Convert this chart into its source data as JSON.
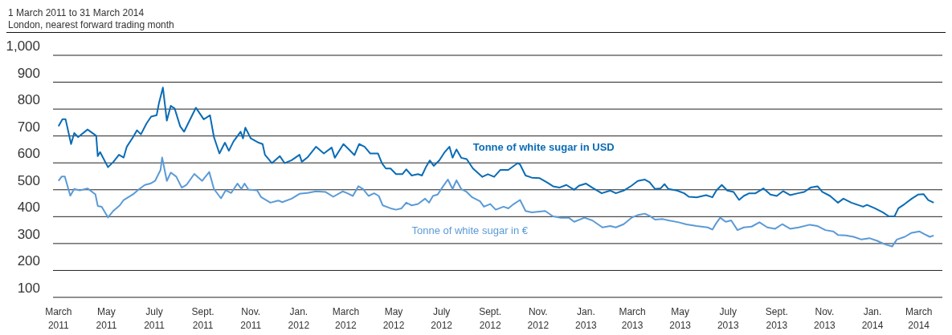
{
  "chart_data": {
    "type": "line",
    "title": "1 March 2011 to 31 March 2014",
    "subtitle": "London, nearest forward trading month",
    "xlim": [
      "2011-02-22",
      "2014-03-31"
    ],
    "xticks": [
      {
        "value": "2011-03-01",
        "label": "March 2011"
      },
      {
        "value": "2011-05-01",
        "label": "May 2011"
      },
      {
        "value": "2011-07-01",
        "label": "July 2011"
      },
      {
        "value": "2011-09-01",
        "label": "Sept. 2011"
      },
      {
        "value": "2011-11-01",
        "label": "Nov. 2011"
      },
      {
        "value": "2012-01-01",
        "label": "Jan. 2012"
      },
      {
        "value": "2012-03-01",
        "label": "March 2012"
      },
      {
        "value": "2012-05-01",
        "label": "May 2012"
      },
      {
        "value": "2012-07-01",
        "label": "July 2012"
      },
      {
        "value": "2012-09-01",
        "label": "Sept. 2012"
      },
      {
        "value": "2012-11-01",
        "label": "Nov. 2012"
      },
      {
        "value": "2013-01-01",
        "label": "Jan. 2013"
      },
      {
        "value": "2013-03-01",
        "label": "March 2013"
      },
      {
        "value": "2013-05-01",
        "label": "May 2013"
      },
      {
        "value": "2013-07-01",
        "label": "July 2013"
      },
      {
        "value": "2013-09-01",
        "label": "Sept. 2013"
      },
      {
        "value": "2013-11-01",
        "label": "Nov. 2013"
      },
      {
        "value": "2014-01-01",
        "label": "Jan. 2014"
      },
      {
        "value": "2014-03-01",
        "label": "March 2014"
      }
    ],
    "ylim": [
      100,
      1000
    ],
    "yticks": [
      100,
      200,
      300,
      400,
      500,
      600,
      700,
      800,
      900,
      {
        "value": 1000,
        "label": "1,000"
      }
    ],
    "grid": "y",
    "marker": "none",
    "line_style": "solid",
    "series": [
      {
        "name": "Tonne of white sugar in USD",
        "color": "#0a6cb5",
        "x": [
          "2011-03-01",
          "2011-03-06",
          "2011-03-10",
          "2011-03-17",
          "2011-03-21",
          "2011-03-26",
          "2011-04-07",
          "2011-04-18",
          "2011-04-20",
          "2011-04-23",
          "2011-05-03",
          "2011-05-10",
          "2011-05-17",
          "2011-05-23",
          "2011-05-27",
          "2011-06-04",
          "2011-06-09",
          "2011-06-14",
          "2011-06-21",
          "2011-06-27",
          "2011-07-04",
          "2011-07-07",
          "2011-07-12",
          "2011-07-17",
          "2011-07-22",
          "2011-07-27",
          "2011-08-03",
          "2011-08-08",
          "2011-08-13",
          "2011-08-23",
          "2011-09-02",
          "2011-09-10",
          "2011-09-15",
          "2011-09-22",
          "2011-09-29",
          "2011-10-04",
          "2011-10-10",
          "2011-10-19",
          "2011-10-22",
          "2011-10-25",
          "2011-11-01",
          "2011-11-11",
          "2011-11-16",
          "2011-11-19",
          "2011-11-28",
          "2011-12-08",
          "2011-12-14",
          "2011-12-23",
          "2012-01-02",
          "2012-01-05",
          "2012-01-12",
          "2012-01-23",
          "2012-02-02",
          "2012-02-12",
          "2012-02-16",
          "2012-02-27",
          "2012-03-05",
          "2012-03-12",
          "2012-03-18",
          "2012-03-25",
          "2012-04-01",
          "2012-04-11",
          "2012-04-16",
          "2012-04-21",
          "2012-04-27",
          "2012-05-04",
          "2012-05-12",
          "2012-05-17",
          "2012-05-24",
          "2012-06-01",
          "2012-06-06",
          "2012-06-11",
          "2012-06-16",
          "2012-06-21",
          "2012-06-28",
          "2012-07-05",
          "2012-07-11",
          "2012-07-15",
          "2012-07-20",
          "2012-07-26",
          "2012-08-02",
          "2012-08-10",
          "2012-08-22",
          "2012-08-29",
          "2012-09-06",
          "2012-09-14",
          "2012-09-24",
          "2012-10-06",
          "2012-10-09",
          "2012-10-16",
          "2012-10-24",
          "2012-11-03",
          "2012-11-12",
          "2012-11-20",
          "2012-11-28",
          "2012-12-07",
          "2012-12-17",
          "2012-12-23",
          "2013-01-01",
          "2013-01-09",
          "2013-01-21",
          "2013-02-01",
          "2013-02-08",
          "2013-02-18",
          "2013-02-28",
          "2013-03-08",
          "2013-03-17",
          "2013-03-23",
          "2013-03-30",
          "2013-04-06",
          "2013-04-11",
          "2013-04-16",
          "2013-04-27",
          "2013-05-06",
          "2013-05-12",
          "2013-05-22",
          "2013-06-03",
          "2013-06-11",
          "2013-06-16",
          "2013-06-23",
          "2013-06-30",
          "2013-07-08",
          "2013-07-15",
          "2013-07-21",
          "2013-07-28",
          "2013-08-05",
          "2013-08-15",
          "2013-08-24",
          "2013-09-01",
          "2013-09-09",
          "2013-09-18",
          "2013-09-28",
          "2013-10-06",
          "2013-10-14",
          "2013-10-23",
          "2013-10-29",
          "2013-11-08",
          "2013-11-18",
          "2013-11-25",
          "2013-12-05",
          "2013-12-20",
          "2013-12-25",
          "2014-01-04",
          "2014-01-14",
          "2014-01-22",
          "2014-01-29",
          "2014-02-03",
          "2014-02-11",
          "2014-02-20",
          "2014-02-28",
          "2014-03-07",
          "2014-03-13",
          "2014-03-20"
        ],
        "values": [
          736,
          762,
          762,
          670,
          711,
          696,
          724,
          701,
          625,
          640,
          584,
          604,
          630,
          620,
          660,
          696,
          721,
          706,
          746,
          772,
          777,
          823,
          880,
          757,
          812,
          802,
          736,
          716,
          746,
          805,
          762,
          777,
          696,
          635,
          675,
          645,
          680,
          716,
          691,
          731,
          691,
          675,
          670,
          630,
          599,
          625,
          599,
          610,
          630,
          604,
          620,
          660,
          635,
          657,
          619,
          670,
          650,
          629,
          670,
          660,
          635,
          635,
          599,
          579,
          579,
          558,
          558,
          576,
          553,
          558,
          553,
          584,
          609,
          589,
          609,
          640,
          660,
          619,
          650,
          619,
          614,
          579,
          548,
          558,
          548,
          574,
          574,
          599,
          594,
          553,
          545,
          543,
          528,
          513,
          508,
          518,
          500,
          515,
          523,
          508,
          487,
          497,
          487,
          497,
          515,
          533,
          538,
          528,
          503,
          505,
          521,
          503,
          497,
          487,
          474,
          472,
          480,
          472,
          497,
          518,
          497,
          492,
          462,
          477,
          487,
          487,
          505,
          482,
          477,
          495,
          480,
          487,
          492,
          508,
          513,
          492,
          477,
          452,
          467,
          452,
          437,
          444,
          431,
          416,
          401,
          401,
          431,
          447,
          467,
          482,
          484,
          462,
          452
        ]
      },
      {
        "name": "Tonne of white sugar in €",
        "color": "#5b9ad6",
        "x": [
          "2011-03-01",
          "2011-03-05",
          "2011-03-09",
          "2011-03-16",
          "2011-03-21",
          "2011-03-28",
          "2011-04-07",
          "2011-04-17",
          "2011-04-20",
          "2011-04-25",
          "2011-05-03",
          "2011-05-10",
          "2011-05-18",
          "2011-05-23",
          "2011-06-04",
          "2011-06-11",
          "2011-06-19",
          "2011-06-26",
          "2011-07-02",
          "2011-07-09",
          "2011-07-11",
          "2011-07-17",
          "2011-07-22",
          "2011-07-29",
          "2011-08-05",
          "2011-08-11",
          "2011-08-21",
          "2011-08-31",
          "2011-09-09",
          "2011-09-15",
          "2011-09-24",
          "2011-09-30",
          "2011-10-07",
          "2011-10-15",
          "2011-10-20",
          "2011-10-24",
          "2011-10-29",
          "2011-11-09",
          "2011-11-14",
          "2011-11-26",
          "2011-12-06",
          "2011-12-11",
          "2011-12-23",
          "2012-01-02",
          "2012-01-12",
          "2012-01-23",
          "2012-02-04",
          "2012-02-14",
          "2012-02-26",
          "2012-03-03",
          "2012-03-10",
          "2012-03-17",
          "2012-03-23",
          "2012-03-30",
          "2012-04-06",
          "2012-04-12",
          "2012-04-17",
          "2012-04-27",
          "2012-05-04",
          "2012-05-11",
          "2012-05-17",
          "2012-05-24",
          "2012-06-01",
          "2012-06-10",
          "2012-06-15",
          "2012-06-20",
          "2012-06-26",
          "2012-07-03",
          "2012-07-09",
          "2012-07-15",
          "2012-07-20",
          "2012-07-26",
          "2012-08-02",
          "2012-08-09",
          "2012-08-19",
          "2012-08-24",
          "2012-09-01",
          "2012-09-08",
          "2012-09-18",
          "2012-09-24",
          "2012-10-01",
          "2012-10-09",
          "2012-10-16",
          "2012-10-24",
          "2012-11-10",
          "2012-11-20",
          "2012-11-30",
          "2012-12-10",
          "2012-12-17",
          "2012-12-30",
          "2013-01-09",
          "2013-01-22",
          "2013-02-01",
          "2013-02-08",
          "2013-02-18",
          "2013-02-28",
          "2013-03-08",
          "2013-03-17",
          "2013-03-23",
          "2013-03-30",
          "2013-04-09",
          "2013-04-16",
          "2013-04-29",
          "2013-05-09",
          "2013-05-22",
          "2013-06-05",
          "2013-06-11",
          "2013-06-16",
          "2013-06-21",
          "2013-06-28",
          "2013-07-05",
          "2013-07-13",
          "2013-07-21",
          "2013-07-31",
          "2013-08-10",
          "2013-08-20",
          "2013-08-30",
          "2013-09-08",
          "2013-09-18",
          "2013-09-29",
          "2013-10-13",
          "2013-10-23",
          "2013-11-02",
          "2013-11-12",
          "2013-11-18",
          "2013-11-28",
          "2013-12-08",
          "2013-12-18",
          "2013-12-28",
          "2014-01-07",
          "2014-01-17",
          "2014-01-26",
          "2014-02-01",
          "2014-02-11",
          "2014-02-20",
          "2014-03-02",
          "2014-03-08",
          "2014-03-15",
          "2014-03-20"
        ],
        "values": [
          533,
          549,
          549,
          478,
          503,
          498,
          505,
          483,
          440,
          437,
          397,
          422,
          442,
          462,
          483,
          501,
          518,
          523,
          533,
          574,
          620,
          533,
          564,
          549,
          508,
          518,
          559,
          533,
          566,
          503,
          468,
          498,
          488,
          523,
          503,
          523,
          501,
          498,
          473,
          452,
          460,
          454,
          467,
          485,
          488,
          494,
          492,
          474,
          494,
          487,
          477,
          513,
          503,
          477,
          487,
          477,
          442,
          431,
          426,
          431,
          452,
          442,
          447,
          467,
          452,
          477,
          482,
          513,
          538,
          503,
          535,
          503,
          492,
          472,
          457,
          437,
          447,
          426,
          437,
          431,
          447,
          462,
          421,
          416,
          421,
          401,
          396,
          396,
          381,
          396,
          386,
          360,
          365,
          360,
          372,
          396,
          406,
          411,
          403,
          389,
          391,
          386,
          379,
          371,
          365,
          360,
          352,
          376,
          396,
          381,
          386,
          350,
          360,
          363,
          379,
          360,
          355,
          372,
          355,
          360,
          370,
          365,
          350,
          345,
          332,
          330,
          325,
          315,
          320,
          310,
          297,
          289,
          315,
          325,
          340,
          345,
          335,
          325,
          330
        ]
      }
    ]
  }
}
